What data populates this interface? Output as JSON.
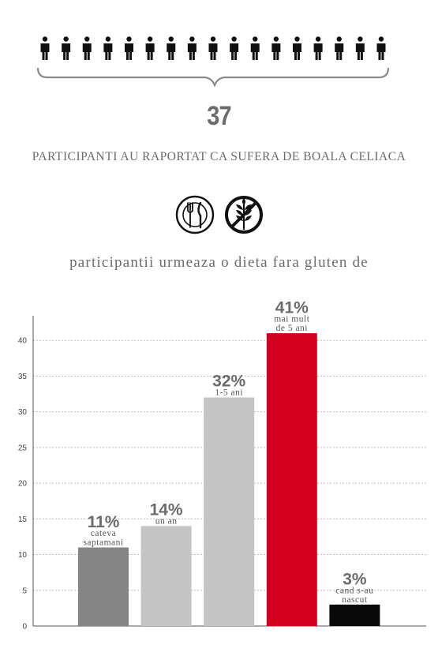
{
  "stat": {
    "count": "37",
    "headline": "PARTICIPANTI AU RAPORTAT CA SUFERA DE BOALA CELIACA",
    "people_icons": 17
  },
  "icons": [
    "plate-fork-knife-icon",
    "no-gluten-wheat-icon"
  ],
  "chart_title": "participantii urmeaza o dieta fara gluten de",
  "colors": {
    "text": "#6b6b6b",
    "bar_dark_gray": "#858585",
    "bar_light_gray": "#c4c4c4",
    "bar_red": "#d2001e",
    "bar_black": "#0a0a0a"
  },
  "chart_data": {
    "type": "bar",
    "categories": [
      "cateva saptamani",
      "un an",
      "1-5 ani",
      "mai mult de 5 ani",
      "cand s-au nascut"
    ],
    "values": [
      11,
      14,
      32,
      41,
      3
    ],
    "percent_labels": [
      "11%",
      "14%",
      "32%",
      "41%",
      "3%"
    ],
    "bar_labels": [
      [
        "cateva",
        "saptamani"
      ],
      [
        "un an"
      ],
      [
        "1-5 ani"
      ],
      [
        "mai mult",
        "de 5 ani"
      ],
      [
        "cand s-au",
        "nascut"
      ]
    ],
    "bar_colors": [
      "#858585",
      "#c4c4c4",
      "#c4c4c4",
      "#d2001e",
      "#0a0a0a"
    ],
    "yticks": [
      "0",
      "5",
      "10",
      "15",
      "20",
      "25",
      "30",
      "35",
      "40"
    ],
    "ylim": [
      0,
      43
    ],
    "grid": true,
    "legend": "none"
  }
}
